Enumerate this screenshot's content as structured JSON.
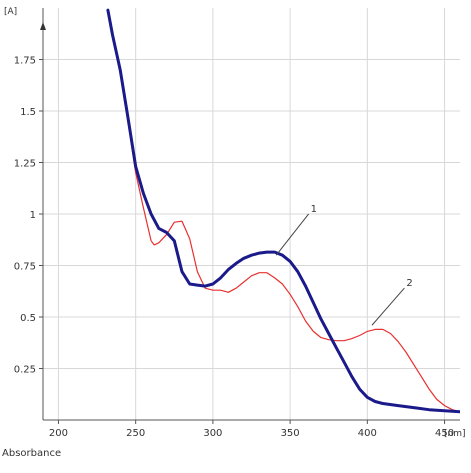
{
  "chart_data": {
    "type": "line",
    "y_unit": "[A]",
    "x_unit": "[nm]",
    "xlabel": "Absorbance",
    "xlim": [
      190,
      460
    ],
    "ylim": [
      0,
      2.0
    ],
    "x_ticks": [
      200,
      250,
      300,
      350,
      400,
      450
    ],
    "y_ticks": [
      0.25,
      0.5,
      0.75,
      1,
      1.25,
      1.5,
      1.75
    ],
    "x_tick_labels": [
      "200",
      "250",
      "300",
      "350",
      "400",
      "450"
    ],
    "y_tick_labels": [
      "0.25",
      "0.5",
      "0.75",
      "1",
      "1.25",
      "1.5",
      "1.75"
    ],
    "grid": true,
    "annotations": [
      {
        "text": "1",
        "series": 0,
        "x": 341,
        "y": 0.8,
        "label_x": 362,
        "label_y": 1.02
      },
      {
        "text": "2",
        "series": 1,
        "x": 403,
        "y": 0.46,
        "label_x": 424,
        "label_y": 0.66
      }
    ],
    "series": [
      {
        "color": "#1a1a8a",
        "x": [
          232,
          235,
          240,
          245,
          250,
          255,
          260,
          265,
          270,
          275,
          280,
          285,
          290,
          295,
          300,
          305,
          310,
          315,
          320,
          325,
          330,
          335,
          340,
          345,
          350,
          355,
          360,
          365,
          370,
          375,
          380,
          385,
          390,
          395,
          400,
          405,
          410,
          420,
          430,
          440,
          450,
          460
        ],
        "y": [
          1.99,
          1.87,
          1.7,
          1.47,
          1.23,
          1.1,
          1.0,
          0.93,
          0.91,
          0.87,
          0.72,
          0.66,
          0.655,
          0.65,
          0.66,
          0.69,
          0.73,
          0.76,
          0.785,
          0.8,
          0.81,
          0.815,
          0.815,
          0.8,
          0.77,
          0.72,
          0.65,
          0.57,
          0.49,
          0.42,
          0.35,
          0.28,
          0.21,
          0.15,
          0.11,
          0.09,
          0.08,
          0.07,
          0.06,
          0.05,
          0.045,
          0.04
        ]
      },
      {
        "color": "#e83030",
        "x": [
          232,
          235,
          240,
          245,
          250,
          255,
          260,
          262,
          265,
          270,
          275,
          280,
          285,
          290,
          295,
          300,
          305,
          310,
          315,
          320,
          325,
          330,
          335,
          340,
          345,
          350,
          355,
          360,
          365,
          370,
          375,
          380,
          385,
          390,
          395,
          400,
          405,
          410,
          415,
          420,
          425,
          430,
          435,
          440,
          445,
          450,
          455,
          460
        ],
        "y": [
          1.99,
          1.87,
          1.68,
          1.45,
          1.2,
          1.03,
          0.87,
          0.85,
          0.86,
          0.9,
          0.96,
          0.965,
          0.88,
          0.72,
          0.64,
          0.63,
          0.63,
          0.62,
          0.64,
          0.67,
          0.7,
          0.715,
          0.715,
          0.69,
          0.66,
          0.61,
          0.55,
          0.48,
          0.43,
          0.4,
          0.39,
          0.385,
          0.385,
          0.395,
          0.41,
          0.43,
          0.44,
          0.44,
          0.42,
          0.38,
          0.33,
          0.27,
          0.21,
          0.15,
          0.1,
          0.07,
          0.05,
          0.04
        ]
      }
    ]
  }
}
